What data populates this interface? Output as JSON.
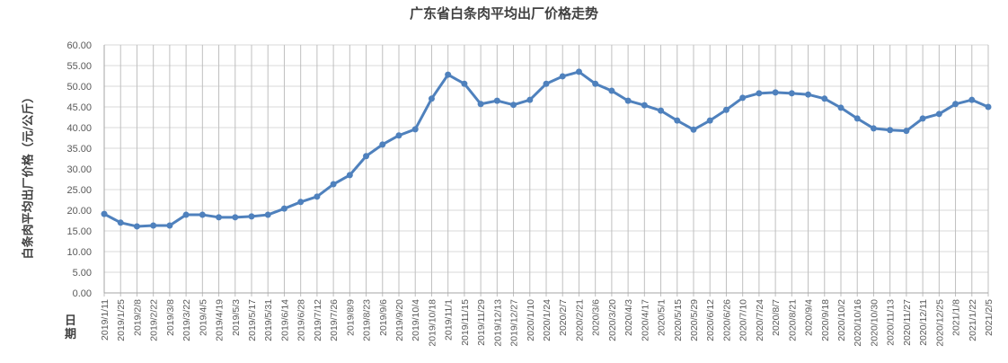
{
  "chart_data": {
    "type": "line",
    "title": "广东省白条肉平均出厂价格走势",
    "xlabel": "日期",
    "ylabel": "白条肉平均出厂价格（元/公斤）",
    "ylim": [
      0,
      60
    ],
    "yticks": [
      "0.00",
      "5.00",
      "10.00",
      "15.00",
      "20.00",
      "25.00",
      "30.00",
      "35.00",
      "40.00",
      "45.00",
      "50.00",
      "55.00",
      "60.00"
    ],
    "grid": true,
    "color": "#4F81BD",
    "categories": [
      "2019/1/11",
      "2019/1/25",
      "2019/2/8",
      "2019/2/22",
      "2019/3/8",
      "2019/3/22",
      "2019/4/5",
      "2019/4/19",
      "2019/5/3",
      "2019/5/17",
      "2019/5/31",
      "2019/6/14",
      "2019/6/28",
      "2019/7/12",
      "2019/7/26",
      "2019/8/9",
      "2019/8/23",
      "2019/9/6",
      "2019/9/20",
      "2019/10/4",
      "2019/10/18",
      "2019/11/1",
      "2019/11/15",
      "2019/11/29",
      "2019/12/13",
      "2019/12/27",
      "2020/1/10",
      "2020/1/24",
      "2020/2/7",
      "2020/2/21",
      "2020/3/6",
      "2020/3/20",
      "2020/4/3",
      "2020/4/17",
      "2020/5/1",
      "2020/5/15",
      "2020/5/29",
      "2020/6/12",
      "2020/6/26",
      "2020/7/10",
      "2020/7/24",
      "2020/8/7",
      "2020/8/21",
      "2020/9/4",
      "2020/9/18",
      "2020/10/2",
      "2020/10/16",
      "2020/10/30",
      "2020/11/13",
      "2020/11/27",
      "2020/12/11",
      "2020/12/25",
      "2021/1/8",
      "2021/1/22",
      "2021/2/5"
    ],
    "values": [
      19.1,
      17.0,
      16.1,
      16.3,
      16.3,
      18.9,
      18.9,
      18.3,
      18.3,
      18.5,
      18.9,
      20.4,
      22.0,
      23.3,
      26.3,
      28.5,
      33.1,
      35.9,
      38.1,
      39.6,
      47.0,
      52.8,
      50.6,
      45.7,
      46.5,
      45.5,
      46.7,
      50.6,
      52.4,
      53.5,
      50.6,
      48.9,
      46.5,
      45.4,
      44.1,
      41.7,
      39.5,
      41.7,
      44.3,
      47.2,
      48.3,
      48.5,
      48.3,
      48.0,
      47.0,
      44.8,
      42.2,
      39.8,
      39.4,
      39.2,
      42.2,
      43.3,
      45.7,
      46.7,
      45.0
    ]
  }
}
